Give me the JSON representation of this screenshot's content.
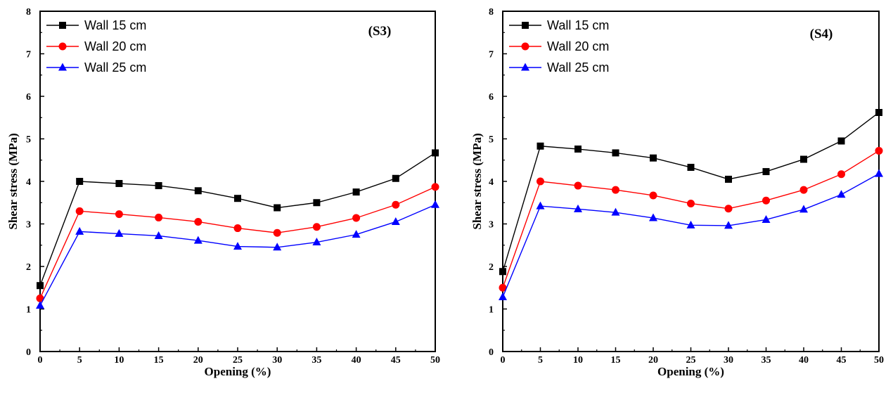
{
  "chart_data": [
    {
      "type": "line",
      "panel_label": "(S3)",
      "xlabel": "Opening (%)",
      "ylabel": "Shear stress (MPa)",
      "xlim": [
        0,
        50
      ],
      "ylim": [
        0,
        8
      ],
      "x_ticks": [
        0,
        5,
        10,
        15,
        20,
        25,
        30,
        35,
        40,
        45,
        50
      ],
      "y_ticks": [
        0,
        1,
        2,
        3,
        4,
        5,
        6,
        7,
        8
      ],
      "grid": false,
      "legend_position": "top-left",
      "x": [
        0,
        5,
        10,
        15,
        20,
        25,
        30,
        35,
        40,
        45,
        50
      ],
      "series": [
        {
          "name": "Wall 15 cm",
          "color": "#000000",
          "marker": "square",
          "values": [
            1.55,
            4.0,
            3.95,
            3.9,
            3.78,
            3.6,
            3.38,
            3.5,
            3.75,
            4.07,
            4.67
          ]
        },
        {
          "name": "Wall 20 cm",
          "color": "#ff0000",
          "marker": "circle",
          "values": [
            1.25,
            3.3,
            3.23,
            3.15,
            3.05,
            2.9,
            2.79,
            2.93,
            3.14,
            3.45,
            3.87
          ]
        },
        {
          "name": "Wall 25 cm",
          "color": "#0000ff",
          "marker": "triangle",
          "values": [
            1.08,
            2.82,
            2.77,
            2.72,
            2.61,
            2.47,
            2.45,
            2.57,
            2.75,
            3.05,
            3.45
          ]
        }
      ]
    },
    {
      "type": "line",
      "panel_label": "(S4)",
      "xlabel": "Opening (%)",
      "ylabel": "Shear stress (MPa)",
      "xlim": [
        0,
        50
      ],
      "ylim": [
        0,
        8
      ],
      "x_ticks": [
        0,
        5,
        10,
        15,
        20,
        25,
        30,
        35,
        40,
        45,
        50
      ],
      "y_ticks": [
        0,
        1,
        2,
        3,
        4,
        5,
        6,
        7,
        8
      ],
      "grid": false,
      "legend_position": "top-left",
      "x": [
        0,
        5,
        10,
        15,
        20,
        25,
        30,
        35,
        40,
        45,
        50
      ],
      "series": [
        {
          "name": "Wall 15 cm",
          "color": "#000000",
          "marker": "square",
          "values": [
            1.88,
            4.83,
            4.76,
            4.67,
            4.55,
            4.33,
            4.05,
            4.23,
            4.52,
            4.95,
            5.62
          ]
        },
        {
          "name": "Wall 20 cm",
          "color": "#ff0000",
          "marker": "circle",
          "values": [
            1.5,
            4.0,
            3.9,
            3.8,
            3.67,
            3.48,
            3.36,
            3.55,
            3.8,
            4.17,
            4.72
          ]
        },
        {
          "name": "Wall 25 cm",
          "color": "#0000ff",
          "marker": "triangle",
          "values": [
            1.28,
            3.42,
            3.35,
            3.27,
            3.14,
            2.97,
            2.96,
            3.1,
            3.34,
            3.69,
            4.18
          ]
        }
      ]
    }
  ]
}
